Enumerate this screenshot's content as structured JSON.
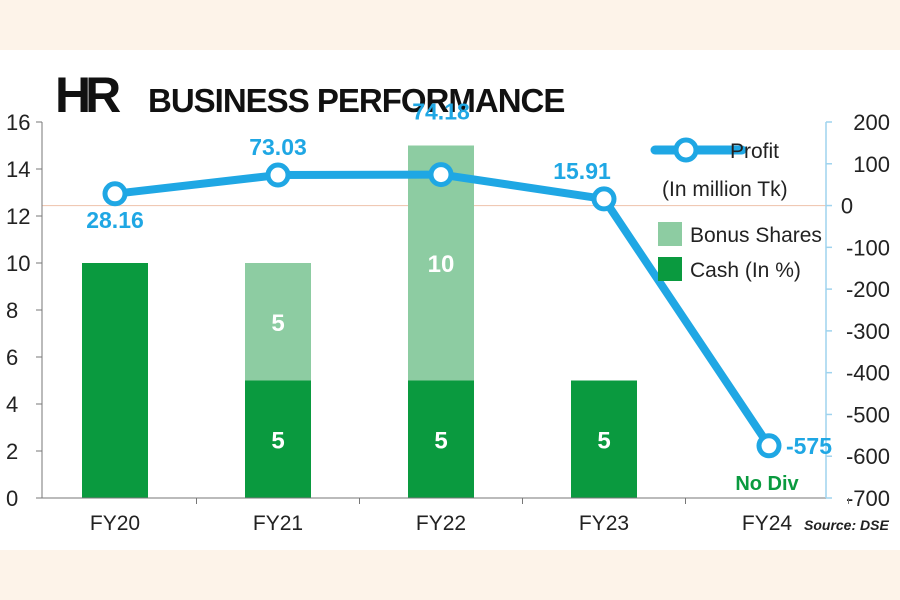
{
  "header": {
    "logo": "HR",
    "title": "BUSINESS PERFORMANCE"
  },
  "source": "Source: DSE",
  "colors": {
    "background": "#fdf3e9",
    "plot_background": "#ffffff",
    "cash": "#0a9a3f",
    "bonus": "#8dcca2",
    "profit_line": "#1fa7e4",
    "zero_line": "#f0c9b4",
    "zero_label": "#e63b2e",
    "right_axis": "#9fd3ee",
    "no_div": "#0a9a3f"
  },
  "legend": {
    "profit_label": "Profit",
    "profit_unit": "(In million Tk)",
    "bonus_label": "Bonus Shares",
    "cash_label": "Cash (In %)"
  },
  "chart_data": {
    "type": "bar",
    "title": "BUSINESS PERFORMANCE",
    "categories": [
      "FY20",
      "FY21",
      "FY22",
      "FY23",
      "FY24"
    ],
    "series": [
      {
        "name": "Cash (In %)",
        "kind": "bar",
        "axis": "left",
        "values": [
          10,
          5,
          5,
          5,
          0
        ],
        "labels": [
          "",
          "5",
          "5",
          "5",
          ""
        ]
      },
      {
        "name": "Bonus Shares",
        "kind": "bar-stacked",
        "axis": "left",
        "values": [
          0,
          5,
          10,
          0,
          0
        ],
        "labels": [
          "",
          "5",
          "10",
          "",
          ""
        ]
      },
      {
        "name": "Profit",
        "kind": "line",
        "axis": "right",
        "unit": "In million Tk",
        "values": [
          28.16,
          73.03,
          74.18,
          15.91,
          -575
        ],
        "labels": [
          "28.16",
          "73.03",
          "74.18",
          "15.91",
          "-575"
        ]
      }
    ],
    "annotations": [
      {
        "category": "FY24",
        "text": "No Div"
      }
    ],
    "left_axis": {
      "min": 0,
      "max": 16,
      "ticks": [
        "0",
        "2",
        "4",
        "6",
        "8",
        "10",
        "12",
        "14",
        "16"
      ]
    },
    "right_axis": {
      "min": -700,
      "max": 200,
      "ticks": [
        "-700",
        "-600",
        "-500",
        "-400",
        "-300",
        "-200",
        "-100",
        "0",
        "100",
        "200"
      ]
    },
    "legend_position": "top-right",
    "grid": false
  }
}
